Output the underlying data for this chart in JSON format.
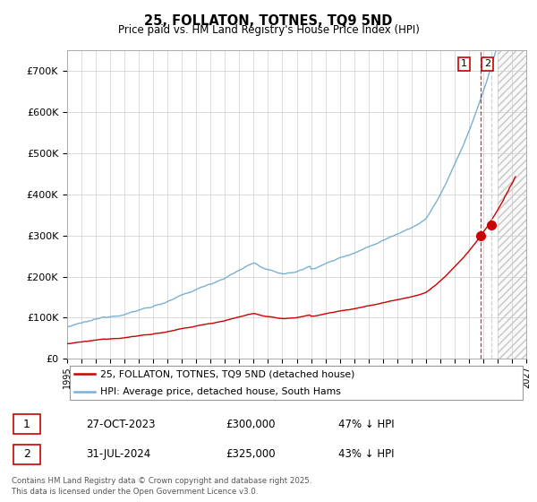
{
  "title": "25, FOLLATON, TOTNES, TQ9 5ND",
  "subtitle": "Price paid vs. HM Land Registry's House Price Index (HPI)",
  "hpi_color": "#7ab0d4",
  "property_color": "#cc0000",
  "xlim_start": 1995,
  "xlim_end": 2027,
  "ylim_min": 0,
  "ylim_max": 750000,
  "yticks": [
    0,
    100000,
    200000,
    300000,
    400000,
    500000,
    600000,
    700000
  ],
  "sale1_x": 2023.82,
  "sale1_y": 300000,
  "sale2_x": 2024.58,
  "sale2_y": 325000,
  "future_start": 2025.0,
  "legend_entry1": "25, FOLLATON, TOTNES, TQ9 5ND (detached house)",
  "legend_entry2": "HPI: Average price, detached house, South Hams",
  "table_row1": [
    "1",
    "27-OCT-2023",
    "£300,000",
    "47% ↓ HPI"
  ],
  "table_row2": [
    "2",
    "31-JUL-2024",
    "£325,000",
    "43% ↓ HPI"
  ],
  "footer": "Contains HM Land Registry data © Crown copyright and database right 2025.\nThis data is licensed under the Open Government Licence v3.0."
}
